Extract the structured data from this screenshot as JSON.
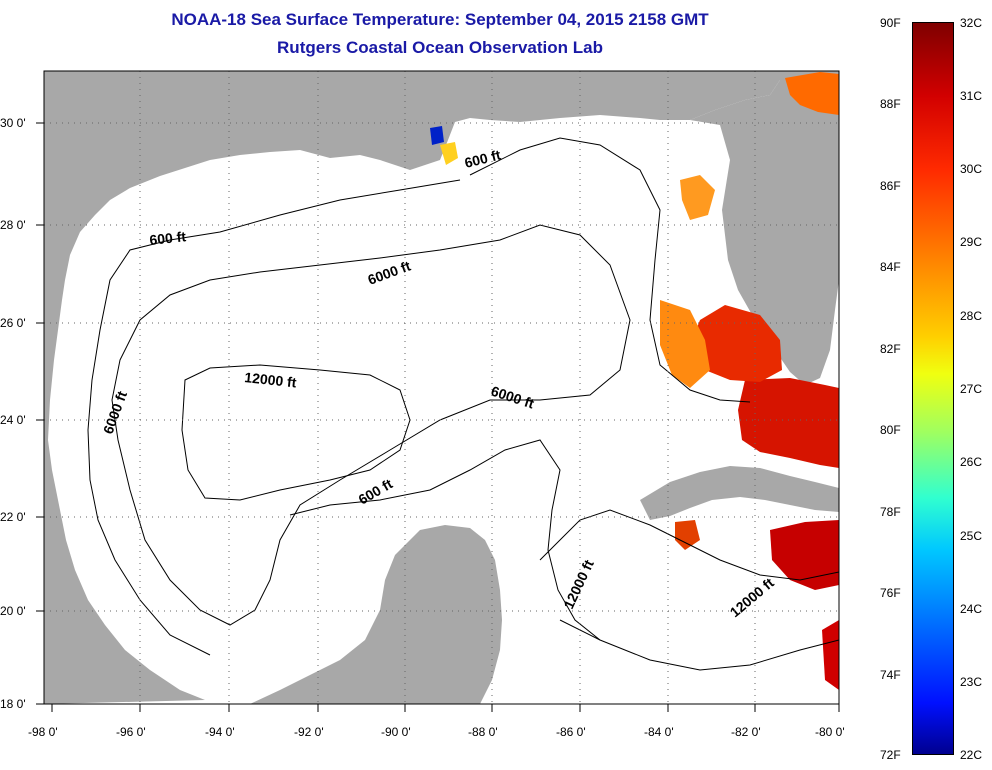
{
  "header": {
    "title": "NOAA-18 Sea Surface Temperature:  September 04, 2015 2158 GMT",
    "subtitle": "Rutgers Coastal Ocean Observation Lab"
  },
  "map": {
    "lat_labels": [
      "30 0'",
      "28 0'",
      "26 0'",
      "24 0'",
      "22 0'",
      "20 0'",
      "18 0'"
    ],
    "lon_labels": [
      "-98 0'",
      "-96 0'",
      "-94 0'",
      "-92 0'",
      "-90 0'",
      "-88 0'",
      "-86 0'",
      "-84 0'",
      "-82 0'",
      "-80 0'"
    ],
    "lat_range": [
      18,
      31
    ],
    "lon_range": [
      -98,
      -80
    ],
    "depth_labels": [
      "600 ft",
      "600 ft",
      "6000 ft",
      "12000 ft",
      "6000 ft",
      "6000 ft",
      "600 ft",
      "12000 ft",
      "12000 ft"
    ],
    "colors": {
      "land": "#a8a8a8",
      "ocean_no_data": "#ffffff",
      "warm_sst": "#e41a00",
      "hot_sst": "#c80000",
      "orange_sst": "#ff7a00"
    }
  },
  "colorbar": {
    "fahrenheit": [
      "90F",
      "88F",
      "86F",
      "84F",
      "82F",
      "80F",
      "78F",
      "76F",
      "74F",
      "72F"
    ],
    "celsius": [
      "32C",
      "31C",
      "30C",
      "29C",
      "28C",
      "27C",
      "26C",
      "25C",
      "24C",
      "23C",
      "22C"
    ]
  }
}
